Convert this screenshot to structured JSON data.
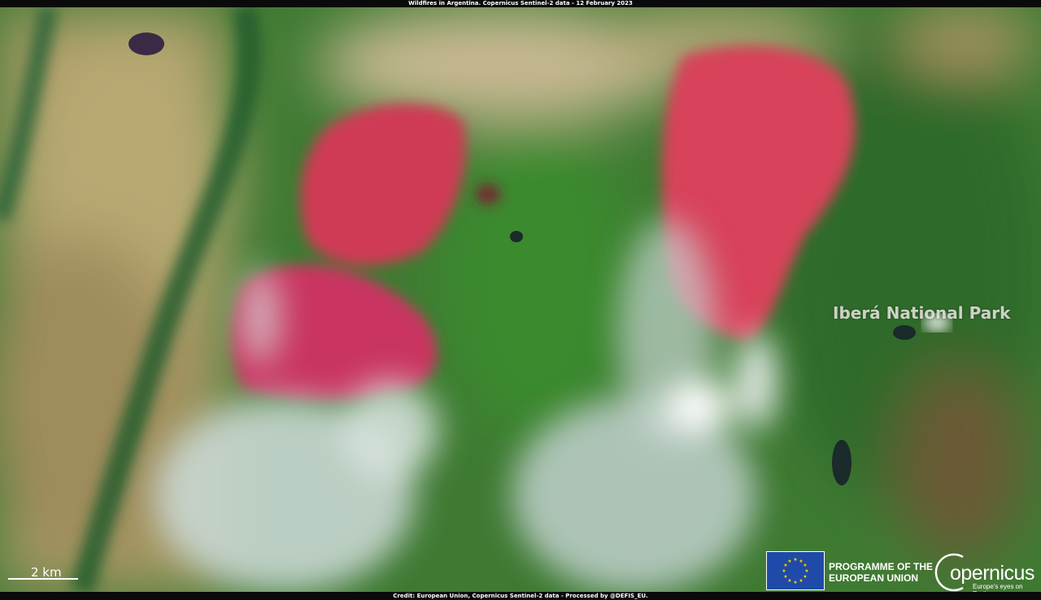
{
  "header": {
    "title": "Wildfires in Argentina. Copernicus Sentinel-2 data - 12 February 2023"
  },
  "footer": {
    "credit": "Credit: European Union, Copernicus  Sentinel-2 data - Processed by @DEFIS_EU."
  },
  "map": {
    "place_label": "Iberá National Park",
    "scale_label": "2 km"
  },
  "logos": {
    "eu_text_line1": "PROGRAMME OF THE",
    "eu_text_line2": "EUROPEAN UNION",
    "copernicus_wordmark": "Copernicus",
    "copernicus_tagline": "Europe's eyes on Earth"
  },
  "colors": {
    "burn_scar": "#d23a55",
    "vegetation": "#2f7a2c",
    "wetland": "#b9a877",
    "smoke": "#c8d6d2",
    "eu_blue": "#1f4aa8",
    "eu_star": "#ffd400"
  }
}
